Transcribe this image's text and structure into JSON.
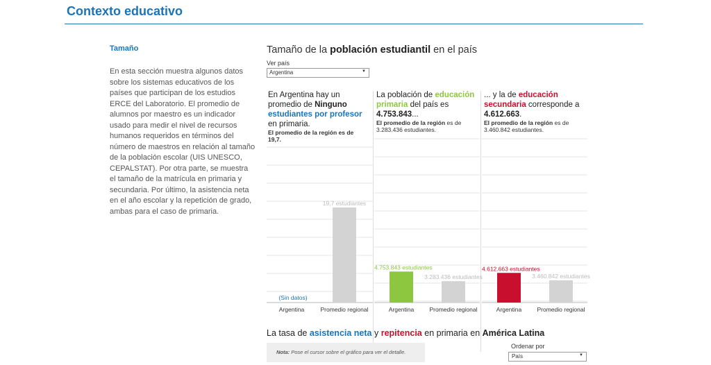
{
  "header": {
    "title": "Contexto educativo"
  },
  "sidebar": {
    "heading": "Tamaño",
    "text": "En esta sección muestra algunos datos sobre los sistemas educativos de los países que participan de los estudios ERCE del Laboratorio. El promedio de alumnos por maestro es un indicador usado para medir el nivel de recursos humanos requeridos en términos del número de maestros en relación al tamaño de la población escolar (UIS UNESCO, CEPALSTAT). Por otra parte, se muestra el tamaño de la matrícula en primaria y secundaria. Por último, la asistencia neta en el año escolar y la repetición de grado, ambas para el caso de primaria."
  },
  "main": {
    "title_pre": "Tamaño de la ",
    "title_bold": "población estudiantil",
    "title_post": " en el país",
    "country_label": "Ver país",
    "country_value": "Argentina",
    "panel1": {
      "t1": "En Argentina hay un promedio de ",
      "t2": "Ninguno",
      "t3": "estudiantes por profesor",
      "t4": " en primaria.",
      "small": "El promedio de la región es de 19,7."
    },
    "panel2": {
      "t1": "La población de ",
      "t2": "educación primaria",
      "t3": " del país es ",
      "t4": "4.753.843",
      "t5": "...",
      "small_bold": "El promedio de la región",
      "small_rest": " es de 3.283.436 estudiantes."
    },
    "panel3": {
      "t1": "... y la de ",
      "t2": "educación secundaria",
      "t3": " corresponde a ",
      "t4": "4.612.663",
      "t5": ".",
      "small_bold": "El promedio de la región",
      "small_rest": " es de 3.460.842 estudiantes."
    },
    "asistencia": {
      "t1": "La tasa de ",
      "t2": "asistencia neta",
      "t3": " y ",
      "t4": "repitencia",
      "t5": " en primaria en ",
      "t6": "América Latina"
    },
    "note_bold": "Nota:",
    "note_text": " Pose el cursor sobre el gráfico para ver el detalle.",
    "order_label": "Ordenar por",
    "order_value": "País"
  },
  "chart_data": [
    {
      "type": "bar",
      "categories": [
        "Argentina",
        "Promedio regional"
      ],
      "values": [
        null,
        19.7
      ],
      "data_labels": [
        "(Sin datos)",
        "19,7 estudiantes"
      ],
      "colors": [
        "#d3d3d3",
        "#d3d3d3"
      ]
    },
    {
      "type": "bar",
      "categories": [
        "Argentina",
        "Promedio regional"
      ],
      "values": [
        4753843,
        3283436
      ],
      "data_labels": [
        "4.753.843 estudiantes",
        "3.283.436 estudiantes"
      ],
      "colors": [
        "#8dc63f",
        "#d3d3d3"
      ]
    },
    {
      "type": "bar",
      "categories": [
        "Argentina",
        "Promedio regional"
      ],
      "values": [
        4612663,
        3460842
      ],
      "data_labels": [
        "4.612.663 estudiantes",
        "3.460.842 estudiantes"
      ],
      "colors": [
        "#c8102e",
        "#d3d3d3"
      ]
    }
  ]
}
